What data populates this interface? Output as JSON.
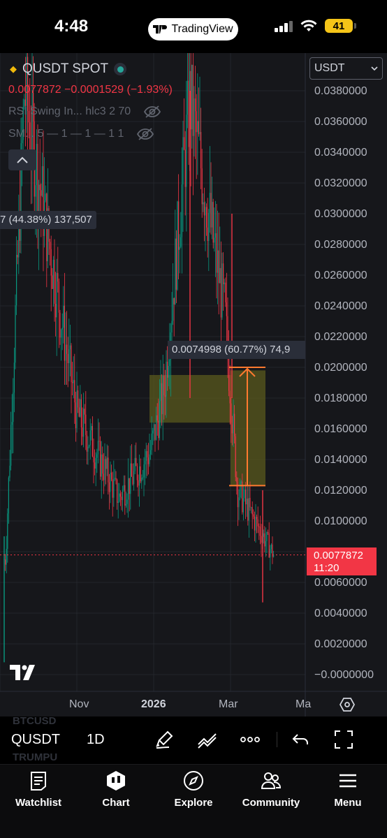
{
  "status_bar": {
    "time": "4:48",
    "app_pill": "TradingView",
    "battery": "41"
  },
  "chart": {
    "symbol": "QUSDT SPOT",
    "price_change": "0.0077872 −0.0001529 (−1.93%)",
    "indicator_1": "RSI Swing In... hlc3 2 70",
    "indicator_2": "SM... 5 — 1 — 1 — 1 1",
    "currency_select": "USDT",
    "price_axis": [
      "0.0380000",
      "0.0360000",
      "0.0340000",
      "0.0320000",
      "0.0300000",
      "0.0280000",
      "0.0260000",
      "0.0240000",
      "0.0220000",
      "0.0200000",
      "0.0180000",
      "0.0160000",
      "0.0140000",
      "0.0120000",
      "0.0100000",
      "0.0060000",
      "0.0040000",
      "0.0020000",
      "−0.0000000"
    ],
    "last_price": "0.0077872",
    "countdown": "11:20",
    "measure_1": "7 (44.38%) 137,507",
    "measure_2": "0.0074998 (60.77%) 74,9",
    "time_axis": [
      "Nov",
      "2026",
      "Mar",
      "Ma"
    ],
    "colors": {
      "up": "#089981",
      "down": "#f23645",
      "box_fill": "#5a5a1e",
      "arrow": "#ff7a2f"
    }
  },
  "chart_data": {
    "type": "candlestick",
    "series_name": "QUSDT SPOT",
    "ylim": [
      -0.0005,
      0.0395
    ],
    "x_ticks": [
      "Nov",
      "2026",
      "Mar",
      "Ma"
    ],
    "last_price": 0.0077872,
    "key_points": [
      {
        "t": "early Oct",
        "close": 0.0075
      },
      {
        "t": "mid Oct peak",
        "close": 0.038
      },
      {
        "t": "mid Nov",
        "close": 0.017
      },
      {
        "t": "late Nov",
        "close": 0.0115
      },
      {
        "t": "Dec",
        "close": 0.0145
      },
      {
        "t": "2026 start",
        "close": 0.0185
      },
      {
        "t": "Feb spike",
        "close": 0.0375
      },
      {
        "t": "late Feb",
        "close": 0.0235
      },
      {
        "t": "Mar",
        "close": 0.012
      },
      {
        "t": "last",
        "close": 0.0078
      }
    ]
  },
  "toolbar": {
    "symbol": "QUSDT",
    "interval": "1D",
    "ghost_1": "BTCUSD",
    "ghost_2": "TRUMPU"
  },
  "nav": {
    "watchlist": "Watchlist",
    "chart": "Chart",
    "explore": "Explore",
    "community": "Community",
    "menu": "Menu"
  }
}
